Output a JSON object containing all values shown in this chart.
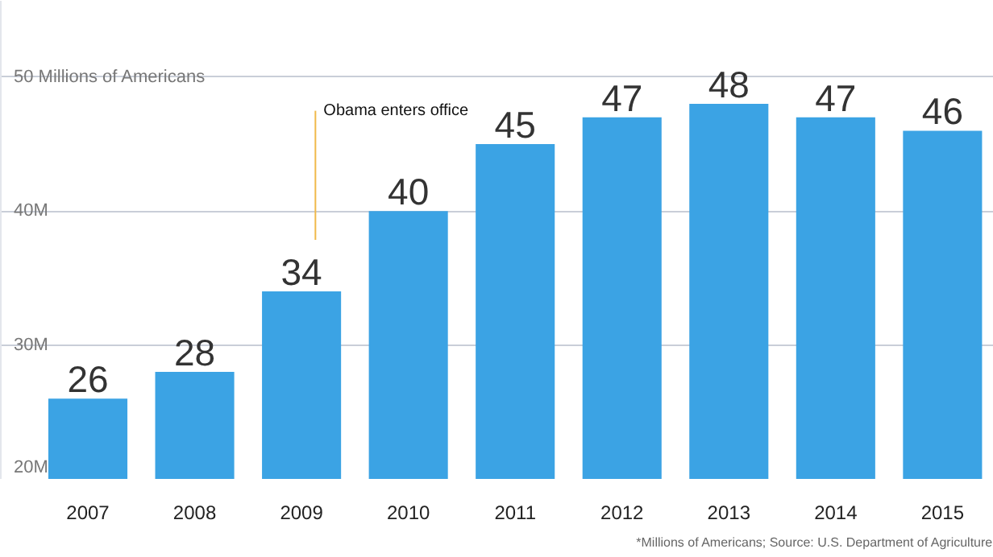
{
  "chart_data": {
    "type": "bar",
    "categories": [
      "2007",
      "2008",
      "2009",
      "2010",
      "2011",
      "2012",
      "2013",
      "2014",
      "2015"
    ],
    "values": [
      26,
      28,
      34,
      40,
      45,
      47,
      48,
      47,
      46
    ],
    "color": "#3ba3e4",
    "ylim": [
      20,
      55.7
    ],
    "yticks": [
      {
        "value": 20,
        "label": "20M"
      },
      {
        "value": 30,
        "label": "30M"
      },
      {
        "value": 40,
        "label": "40M"
      },
      {
        "value": 50,
        "label": "50 Millions of Americans"
      }
    ],
    "grid": "y",
    "data_labels": true,
    "ref_lines": [
      {
        "axis": "x",
        "value": "2009",
        "label": "Obama enters office",
        "color": "#f0b94a"
      }
    ],
    "annotations": [
      "*Millions of Americans; Source: U.S. Department of Agriculture"
    ]
  }
}
